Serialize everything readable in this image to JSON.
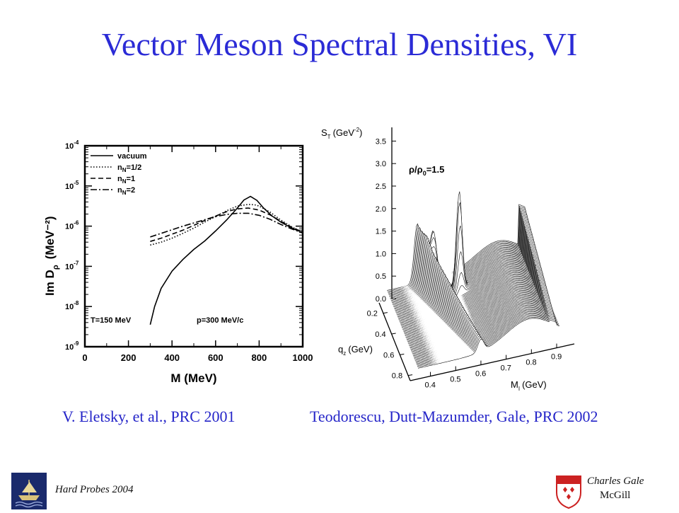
{
  "slide": {
    "title": "Vector Meson Spectral Densities, VI",
    "caption_left": "V. Eletsky, et al., PRC 2001",
    "caption_right": "Teodorescu, Dutt-Mazumder, Gale, PRC 2002"
  },
  "footer": {
    "conference": "Hard Probes 2004",
    "author": "Charles Gale",
    "affiliation": "McGill"
  },
  "colors": {
    "title": "#2b2bd6",
    "caption": "#2424c8",
    "logo_left_bg": "#1a2a6c",
    "logo_right": "#cc2222"
  },
  "chart_data": [
    {
      "type": "line",
      "xlabel": "M  (MeV)",
      "ylabel": "Im  D",
      "ylabel_sub": "ρ",
      "ylabel_unit": "(MeV⁻²)",
      "xlim": [
        0,
        1000
      ],
      "ylim_log10": [
        -9,
        -4
      ],
      "y_log": true,
      "x_ticks": [
        "0",
        "200",
        "400",
        "600",
        "800",
        "1000"
      ],
      "y_ticks": [
        {
          "base": "10",
          "exp": "-9"
        },
        {
          "base": "10",
          "exp": "-8"
        },
        {
          "base": "10",
          "exp": "-7"
        },
        {
          "base": "10",
          "exp": "-6"
        },
        {
          "base": "10",
          "exp": "-5"
        },
        {
          "base": "10",
          "exp": "-4"
        }
      ],
      "legend_position": "top-left",
      "annotations": [
        "T=150 MeV",
        "p=300 MeV/c"
      ],
      "series": [
        {
          "name": "vacuum",
          "dash": "solid",
          "x": [
            300,
            320,
            350,
            400,
            450,
            500,
            550,
            600,
            650,
            700,
            730,
            760,
            790,
            820,
            860,
            900,
            950,
            1000
          ],
          "y": [
            -8.45,
            -8.0,
            -7.55,
            -7.12,
            -6.83,
            -6.58,
            -6.37,
            -6.12,
            -5.85,
            -5.55,
            -5.35,
            -5.26,
            -5.36,
            -5.55,
            -5.75,
            -5.9,
            -6.05,
            -6.16
          ]
        },
        {
          "name": "n_N=1/2",
          "dash": "dotted",
          "x": [
            300,
            350,
            400,
            450,
            500,
            550,
            600,
            650,
            700,
            750,
            780,
            800,
            850,
            900,
            950,
            1000
          ],
          "y": [
            -6.47,
            -6.4,
            -6.3,
            -6.18,
            -6.05,
            -5.9,
            -5.76,
            -5.62,
            -5.5,
            -5.46,
            -5.47,
            -5.5,
            -5.65,
            -5.85,
            -6.02,
            -6.15
          ]
        },
        {
          "name": "n_N=1",
          "dash": "dashed",
          "x": [
            300,
            350,
            400,
            450,
            500,
            550,
            600,
            650,
            700,
            750,
            800,
            850,
            900,
            950,
            1000
          ],
          "y": [
            -6.38,
            -6.3,
            -6.2,
            -6.1,
            -5.98,
            -5.86,
            -5.75,
            -5.64,
            -5.57,
            -5.55,
            -5.6,
            -5.72,
            -5.88,
            -6.03,
            -6.15
          ]
        },
        {
          "name": "n_N=2",
          "dash": "dashdot",
          "x": [
            300,
            350,
            400,
            450,
            500,
            550,
            600,
            650,
            700,
            750,
            800,
            850,
            900,
            950,
            1000
          ],
          "y": [
            -6.27,
            -6.18,
            -6.09,
            -6.0,
            -5.92,
            -5.84,
            -5.76,
            -5.71,
            -5.68,
            -5.68,
            -5.73,
            -5.83,
            -5.96,
            -6.07,
            -6.17
          ]
        }
      ]
    },
    {
      "type": "surface",
      "zlabel": "S",
      "zlabel_sub": "T",
      "zlabel_unit": "(GeV",
      "zlabel_exp": "-2",
      "ylabel": "q",
      "ylabel_sub": "z",
      "ylabel_unit": "(GeV)",
      "xlabel": "M",
      "xlabel_sub": "I",
      "xlabel_unit": "(GeV)",
      "annotation": "ρ/ρ",
      "annotation_sub": "0",
      "annotation_value": "=1.5",
      "z_ticks": [
        "0.0",
        "0.5",
        "1.0",
        "1.5",
        "2.0",
        "2.5",
        "3.0",
        "3.5"
      ],
      "q_ticks": [
        "0.2",
        "0.4",
        "0.6",
        "0.8"
      ],
      "m_ticks": [
        "0.4",
        "0.5",
        "0.6",
        "0.7",
        "0.8",
        "0.9"
      ]
    }
  ]
}
